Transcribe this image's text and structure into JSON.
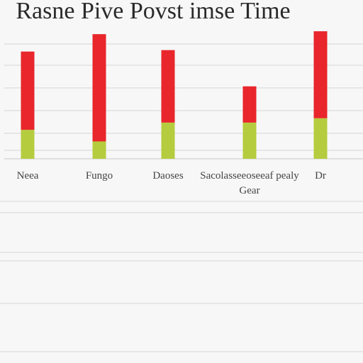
{
  "chart_data": {
    "type": "bar",
    "title": "Rasne Pive Povst imse Time",
    "categories": [
      "Neea",
      "Fungo",
      "Daoses",
      "Sacolasseeoseeaf pealy Gear",
      "Dr"
    ],
    "category_lines": [
      [
        "Neea"
      ],
      [
        "Fungo"
      ],
      [
        "Daoses"
      ],
      [
        "Sacolasseeoseeaf pealy",
        "Gear"
      ],
      [
        "Dr"
      ]
    ],
    "series": [
      {
        "values": [
          20,
          12,
          25,
          25,
          28
        ]
      },
      {
        "values": [
          54,
          74,
          50,
          25,
          60
        ]
      }
    ],
    "stacked": true,
    "ylim": [
      0,
      90
    ],
    "grid": true,
    "colors": [
      "#b5cc3e",
      "#e8262b"
    ]
  }
}
